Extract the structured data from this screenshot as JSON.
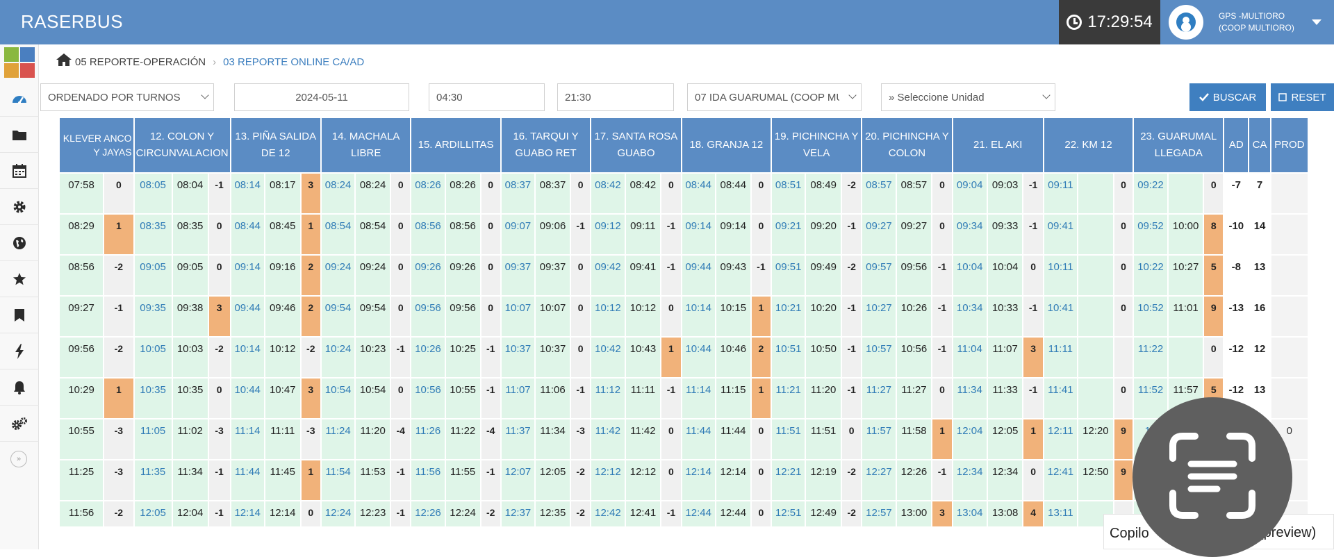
{
  "app": {
    "title": "RASERBUS"
  },
  "header": {
    "clock": "17:29:54",
    "user_line1": "GPS -MULTIORO",
    "user_line2": "(COOP MULTIORO)"
  },
  "sidebar": {
    "icons": [
      "dashboard-icon",
      "folder-icon",
      "calendar-icon",
      "gear-icon",
      "globe-icon",
      "star-icon",
      "bookmark-icon",
      "bolt-icon",
      "bell-icon",
      "gears-icon"
    ],
    "collapse_glyph": "»"
  },
  "breadcrumb": {
    "item1": "05 REPORTE-OPERACIÓN",
    "item2": "03 REPORTE ONLINE CA/AD"
  },
  "filters": {
    "order": "ORDENADO POR TURNOS",
    "date": "2024-05-11",
    "time_from": "04:30",
    "time_to": "21:30",
    "route": "07 IDA GUARUMAL (COOP MU",
    "unit_placeholder": "» Seleccione Unidad",
    "search_label": "BUSCAR",
    "reset_label": "RESET"
  },
  "table": {
    "headers": [
      "KLEVER ANCO Y JAYAS",
      "12. COLON Y CIRCUNVALACION",
      "13. PIÑA SALIDA DE 12",
      "14. MACHALA LIBRE",
      "15. ARDILLITAS",
      "16. TARQUI Y GUABO RET",
      "17. SANTA ROSA GUABO",
      "18. GRANJA 12",
      "19. PICHINCHA Y VELA",
      "20. PICHINCHA Y COLON",
      "21. EL AKI",
      "22. KM 12",
      "23. GUARUMAL LLEGADA",
      "AD",
      "CA",
      "PROD"
    ],
    "rows": [
      {
        "first": [
          "07:58",
          "0"
        ],
        "stops": [
          [
            "08:05",
            "08:04",
            "-1"
          ],
          [
            "08:14",
            "08:17",
            "3"
          ],
          [
            "08:24",
            "08:24",
            "0"
          ],
          [
            "08:26",
            "08:26",
            "0"
          ],
          [
            "08:37",
            "08:37",
            "0"
          ],
          [
            "08:42",
            "08:42",
            "0"
          ],
          [
            "08:44",
            "08:44",
            "0"
          ],
          [
            "08:51",
            "08:49",
            "-2"
          ],
          [
            "08:57",
            "08:57",
            "0"
          ],
          [
            "09:04",
            "09:03",
            "-1"
          ],
          [
            "09:11",
            "",
            "0"
          ],
          [
            "09:22",
            "",
            "0"
          ]
        ],
        "ad": "-7",
        "ca": "7",
        "prod": ""
      },
      {
        "first": [
          "08:29",
          "1"
        ],
        "stops": [
          [
            "08:35",
            "08:35",
            "0"
          ],
          [
            "08:44",
            "08:45",
            "1"
          ],
          [
            "08:54",
            "08:54",
            "0"
          ],
          [
            "08:56",
            "08:56",
            "0"
          ],
          [
            "09:07",
            "09:06",
            "-1"
          ],
          [
            "09:12",
            "09:11",
            "-1"
          ],
          [
            "09:14",
            "09:14",
            "0"
          ],
          [
            "09:21",
            "09:20",
            "-1"
          ],
          [
            "09:27",
            "09:27",
            "0"
          ],
          [
            "09:34",
            "09:33",
            "-1"
          ],
          [
            "09:41",
            "",
            "0"
          ],
          [
            "09:52",
            "10:00",
            "8"
          ]
        ],
        "ad": "-10",
        "ca": "14",
        "prod": ""
      },
      {
        "first": [
          "08:56",
          "-2"
        ],
        "stops": [
          [
            "09:05",
            "09:05",
            "0"
          ],
          [
            "09:14",
            "09:16",
            "2"
          ],
          [
            "09:24",
            "09:24",
            "0"
          ],
          [
            "09:26",
            "09:26",
            "0"
          ],
          [
            "09:37",
            "09:37",
            "0"
          ],
          [
            "09:42",
            "09:41",
            "-1"
          ],
          [
            "09:44",
            "09:43",
            "-1"
          ],
          [
            "09:51",
            "09:49",
            "-2"
          ],
          [
            "09:57",
            "09:56",
            "-1"
          ],
          [
            "10:04",
            "10:04",
            "0"
          ],
          [
            "10:11",
            "",
            "0"
          ],
          [
            "10:22",
            "10:27",
            "5"
          ]
        ],
        "ad": "-8",
        "ca": "13",
        "prod": ""
      },
      {
        "first": [
          "09:27",
          "-1"
        ],
        "stops": [
          [
            "09:35",
            "09:38",
            "3"
          ],
          [
            "09:44",
            "09:46",
            "2"
          ],
          [
            "09:54",
            "09:54",
            "0"
          ],
          [
            "09:56",
            "09:56",
            "0"
          ],
          [
            "10:07",
            "10:07",
            "0"
          ],
          [
            "10:12",
            "10:12",
            "0"
          ],
          [
            "10:14",
            "10:15",
            "1"
          ],
          [
            "10:21",
            "10:20",
            "-1"
          ],
          [
            "10:27",
            "10:26",
            "-1"
          ],
          [
            "10:34",
            "10:33",
            "-1"
          ],
          [
            "10:41",
            "",
            "0"
          ],
          [
            "10:52",
            "11:01",
            "9"
          ]
        ],
        "ad": "-13",
        "ca": "16",
        "prod": ""
      },
      {
        "first": [
          "09:56",
          "-2"
        ],
        "stops": [
          [
            "10:05",
            "10:03",
            "-2"
          ],
          [
            "10:14",
            "10:12",
            "-2"
          ],
          [
            "10:24",
            "10:23",
            "-1"
          ],
          [
            "10:26",
            "10:25",
            "-1"
          ],
          [
            "10:37",
            "10:37",
            "0"
          ],
          [
            "10:42",
            "10:43",
            "1"
          ],
          [
            "10:44",
            "10:46",
            "2"
          ],
          [
            "10:51",
            "10:50",
            "-1"
          ],
          [
            "10:57",
            "10:56",
            "-1"
          ],
          [
            "11:04",
            "11:07",
            "3"
          ],
          [
            "11:11",
            "",
            ""
          ],
          [
            "11:22",
            "",
            "0"
          ]
        ],
        "ad": "-12",
        "ca": "12",
        "prod": ""
      },
      {
        "first": [
          "10:29",
          "1"
        ],
        "stops": [
          [
            "10:35",
            "10:35",
            "0"
          ],
          [
            "10:44",
            "10:47",
            "3"
          ],
          [
            "10:54",
            "10:54",
            "0"
          ],
          [
            "10:56",
            "10:55",
            "-1"
          ],
          [
            "11:07",
            "11:06",
            "-1"
          ],
          [
            "11:12",
            "11:11",
            "-1"
          ],
          [
            "11:14",
            "11:15",
            "1"
          ],
          [
            "11:21",
            "11:20",
            "-1"
          ],
          [
            "11:27",
            "11:27",
            "0"
          ],
          [
            "11:34",
            "11:33",
            "-1"
          ],
          [
            "11:41",
            "",
            "0"
          ],
          [
            "11:52",
            "11:57",
            "5"
          ]
        ],
        "ad": "-12",
        "ca": "13",
        "prod": ""
      },
      {
        "first": [
          "10:55",
          "-3"
        ],
        "stops": [
          [
            "11:05",
            "11:02",
            "-3"
          ],
          [
            "11:14",
            "11:11",
            "-3"
          ],
          [
            "11:24",
            "11:20",
            "-4"
          ],
          [
            "11:26",
            "11:22",
            "-4"
          ],
          [
            "11:37",
            "11:34",
            "-3"
          ],
          [
            "11:42",
            "11:42",
            "0"
          ],
          [
            "11:44",
            "11:44",
            "0"
          ],
          [
            "11:51",
            "11:51",
            "0"
          ],
          [
            "11:57",
            "11:58",
            "1"
          ],
          [
            "12:04",
            "12:05",
            "1"
          ],
          [
            "12:11",
            "12:20",
            "9"
          ],
          [
            "12",
            "",
            ""
          ]
        ],
        "ad": "",
        "ca": "",
        "prod": "0"
      },
      {
        "first": [
          "11:25",
          "-3"
        ],
        "stops": [
          [
            "11:35",
            "11:34",
            "-1"
          ],
          [
            "11:44",
            "11:45",
            "1"
          ],
          [
            "11:54",
            "11:53",
            "-1"
          ],
          [
            "11:56",
            "11:55",
            "-1"
          ],
          [
            "12:07",
            "12:05",
            "-2"
          ],
          [
            "12:12",
            "12:12",
            "0"
          ],
          [
            "12:14",
            "12:14",
            "0"
          ],
          [
            "12:21",
            "12:19",
            "-2"
          ],
          [
            "12:27",
            "12:26",
            "-1"
          ],
          [
            "12:34",
            "12:34",
            "0"
          ],
          [
            "12:41",
            "12:50",
            "9"
          ],
          [
            "",
            "",
            ""
          ]
        ],
        "ad": "",
        "ca": "",
        "prod": ""
      },
      {
        "first": [
          "11:56",
          "-2"
        ],
        "stops": [
          [
            "12:05",
            "12:04",
            "-1"
          ],
          [
            "12:14",
            "12:14",
            "0"
          ],
          [
            "12:24",
            "12:23",
            "-1"
          ],
          [
            "12:26",
            "12:24",
            "-2"
          ],
          [
            "12:37",
            "12:35",
            "-2"
          ],
          [
            "12:42",
            "12:41",
            "-1"
          ],
          [
            "12:44",
            "12:44",
            "0"
          ],
          [
            "12:51",
            "12:49",
            "-2"
          ],
          [
            "12:57",
            "13:00",
            "3"
          ],
          [
            "13:04",
            "13:08",
            "4"
          ],
          [
            "13:11",
            "",
            ""
          ],
          [
            "",
            "",
            ""
          ]
        ],
        "ad": "",
        "ca": "",
        "prod": ""
      }
    ]
  },
  "overlay": {
    "copilot_left": "Copilo",
    "copilot_right": "(preview)"
  }
}
